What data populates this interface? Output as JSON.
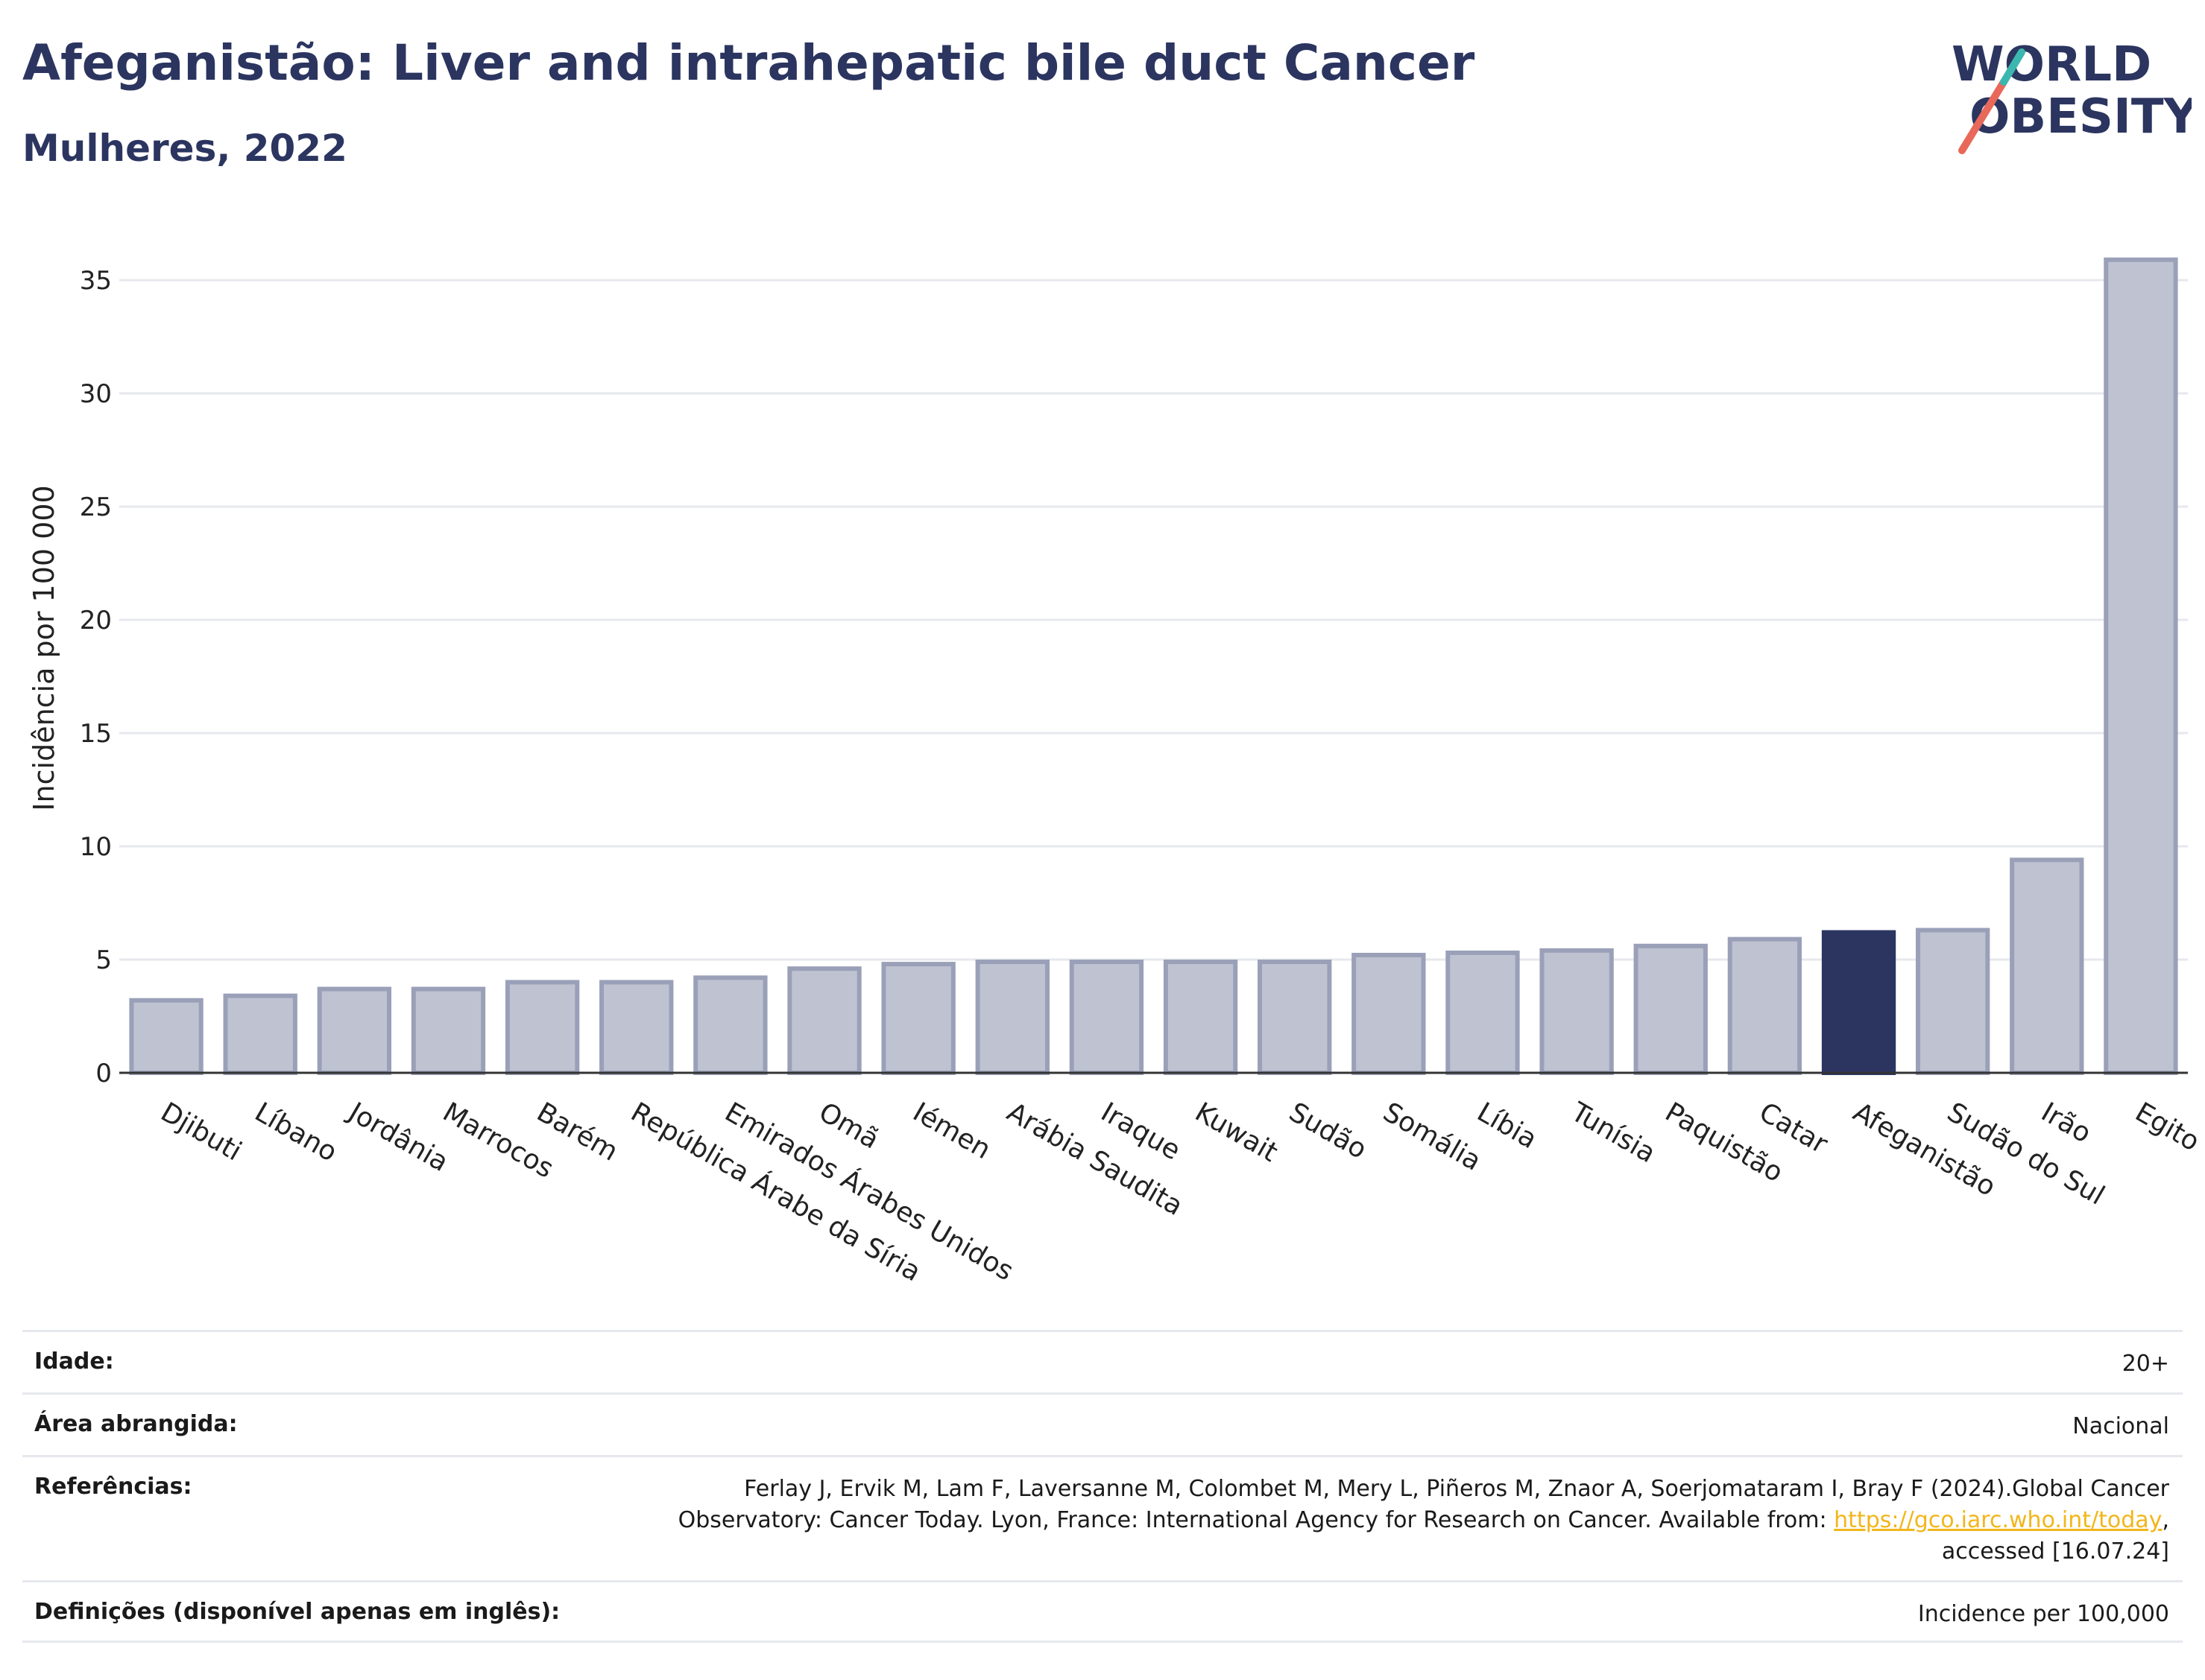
{
  "header": {
    "title": "Afeganistão: Liver and intrahepatic bile duct Cancer",
    "subtitle": "Mulheres, 2022"
  },
  "logo": {
    "line1": "WORLD",
    "line2": "OBESITY",
    "colors": [
      "#2b3560",
      "#e8685a",
      "#3bb7b0"
    ]
  },
  "chart_data": {
    "type": "bar",
    "ylabel": "Incidência por 100 000",
    "xlabel": "",
    "ylim": [
      0,
      37.5
    ],
    "yticks": [
      0,
      5,
      10,
      15,
      20,
      25,
      30,
      35
    ],
    "grid": true,
    "categories": [
      "Djibuti",
      "Líbano",
      "Jordânia",
      "Marrocos",
      "Barém",
      "República Árabe da Síria",
      "Emirados Árabes Unidos",
      "Omã",
      "Iémen",
      "Arábia Saudita",
      "Iraque",
      "Kuwait",
      "Sudão",
      "Somália",
      "Líbia",
      "Tunísia",
      "Paquistão",
      "Catar",
      "Afeganistão",
      "Sudão do Sul",
      "Irão",
      "Egito"
    ],
    "values": [
      3.2,
      3.4,
      3.7,
      3.7,
      4.0,
      4.0,
      4.2,
      4.6,
      4.8,
      4.9,
      4.9,
      4.9,
      4.9,
      5.2,
      5.3,
      5.4,
      5.6,
      5.9,
      6.2,
      6.3,
      9.4,
      35.9
    ],
    "highlight": "Afeganistão",
    "colors": {
      "bar": "#bfc3d1",
      "bar_border": "#9aa0b8",
      "highlight": "#2b3560"
    }
  },
  "meta": {
    "age": {
      "label": "Idade:",
      "value": "20+"
    },
    "area": {
      "label": "Área abrangida:",
      "value": "Nacional"
    },
    "references": {
      "label": "Referências:",
      "line1": "Ferlay J, Ervik M, Lam F, Laversanne M, Colombet M, Mery L, Piñeros M, Znaor A, Soerjomataram I, Bray F (2024).Global Cancer",
      "line2": "Observatory: Cancer Today. Lyon, France: International Agency for Research on Cancer. Available from: ",
      "link": "https://gco.iarc.who.int/today",
      "line2_end": ",",
      "line3": "accessed [16.07.24]"
    },
    "definitions": {
      "label": "Definições (disponível apenas em inglês):",
      "value": "Incidence per 100,000"
    }
  }
}
